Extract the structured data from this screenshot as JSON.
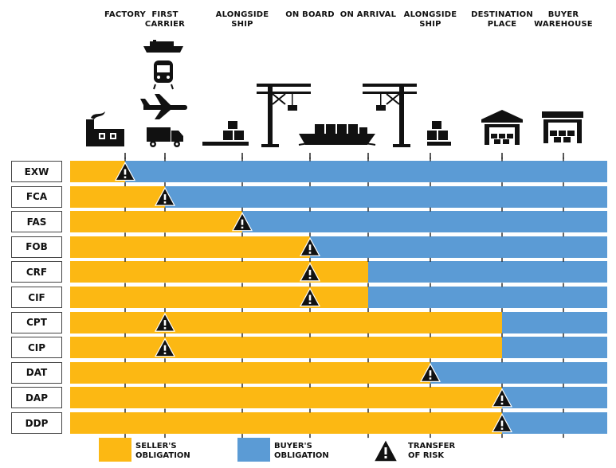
{
  "colors": {
    "seller": "#fcb813",
    "buyer": "#5b9bd5",
    "risk": "#111111",
    "tick": "#222222"
  },
  "stages": [
    {
      "key": "factory",
      "label": "FACTORY"
    },
    {
      "key": "first_carrier",
      "label": "FIRST\nCARRIER"
    },
    {
      "key": "alongside_ship_origin",
      "label": "ALONGSIDE\nSHIP"
    },
    {
      "key": "on_board",
      "label": "ON BOARD"
    },
    {
      "key": "on_arrival",
      "label": "ON ARRIVAL"
    },
    {
      "key": "alongside_ship_destination",
      "label": "ALONGSIDE\nSHIP"
    },
    {
      "key": "destination_place",
      "label": "DESTINATION\nPLACE"
    },
    {
      "key": "buyer_warehouse",
      "label": "BUYER\nWAREHOUSE"
    }
  ],
  "stage_icons": [
    "factory-icon",
    "ship-icon",
    "train-icon",
    "airplane-icon",
    "truck-icon",
    "pallet-boxes-icon",
    "crane-icon",
    "cargo-ship-icon",
    "crane-icon",
    "pallet-boxes-icon",
    "warehouse-icon",
    "warehouse-icon"
  ],
  "terms": [
    {
      "code": "EXW",
      "seller_until": "factory",
      "risk_at": "factory"
    },
    {
      "code": "FCA",
      "seller_until": "first_carrier",
      "risk_at": "first_carrier"
    },
    {
      "code": "FAS",
      "seller_until": "alongside_ship_origin",
      "risk_at": "alongside_ship_origin"
    },
    {
      "code": "FOB",
      "seller_until": "on_board",
      "risk_at": "on_board"
    },
    {
      "code": "CRF",
      "seller_until": "on_arrival",
      "risk_at": "on_board"
    },
    {
      "code": "CIF",
      "seller_until": "on_arrival",
      "risk_at": "on_board"
    },
    {
      "code": "CPT",
      "seller_until": "destination_place",
      "risk_at": "first_carrier"
    },
    {
      "code": "CIP",
      "seller_until": "destination_place",
      "risk_at": "first_carrier"
    },
    {
      "code": "DAT",
      "seller_until": "alongside_ship_destination",
      "risk_at": "alongside_ship_destination"
    },
    {
      "code": "DAP",
      "seller_until": "destination_place",
      "risk_at": "destination_place"
    },
    {
      "code": "DDP",
      "seller_until": "destination_place",
      "risk_at": "destination_place"
    }
  ],
  "legend": {
    "seller_label": "SELLER'S\nOBLIGATION",
    "buyer_label": "BUYER'S\nOBLIGATION",
    "risk_label": "TRANSFER\nOF RISK"
  }
}
